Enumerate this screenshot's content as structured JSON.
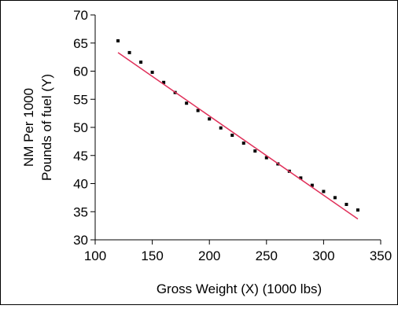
{
  "chart_data": {
    "type": "scatter",
    "title": "",
    "xlabel": "Gross Weight (X) (1000 lbs)",
    "ylabel_line1": "NM Per 1000",
    "ylabel_line2": "Pounds of fuel (Y)",
    "xlim": [
      100,
      350
    ],
    "ylim": [
      30,
      70
    ],
    "x_ticks": [
      100,
      150,
      200,
      250,
      300,
      350
    ],
    "y_ticks": [
      30,
      35,
      40,
      45,
      50,
      55,
      60,
      65,
      70
    ],
    "grid": false,
    "legend": "none",
    "colors": {
      "points": "#000000",
      "fit_line": "#e0305a",
      "axis": "#000000",
      "border": "#000000"
    },
    "series": [
      {
        "values_x": [
          120,
          130,
          140,
          150,
          160,
          170,
          180,
          190,
          200,
          210,
          220,
          230,
          240,
          250,
          260,
          270,
          280,
          290,
          300,
          310,
          320,
          330
        ],
        "values_y": [
          65.4,
          63.3,
          61.6,
          59.8,
          58.0,
          56.2,
          54.3,
          53.0,
          51.5,
          49.9,
          48.6,
          47.2,
          45.8,
          44.6,
          43.5,
          42.2,
          41.0,
          39.7,
          38.6,
          37.5,
          36.3,
          35.3
        ]
      }
    ],
    "fit_line": {
      "x": [
        120,
        330
      ],
      "y": [
        63.3,
        33.7
      ]
    }
  }
}
